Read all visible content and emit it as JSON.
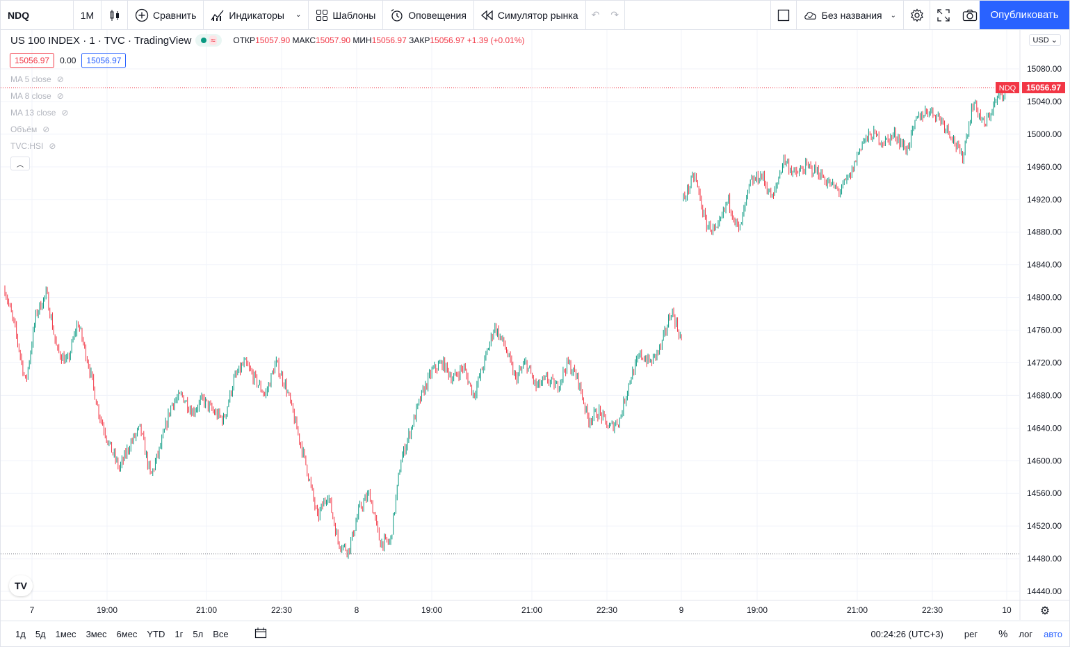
{
  "toolbar": {
    "symbol": "NDQ",
    "interval": "1М",
    "compare_label": "Сравнить",
    "indicators_label": "Индикаторы",
    "templates_label": "Шаблоны",
    "alerts_label": "Оповещения",
    "replay_label": "Симулятор рынка",
    "layout_name": "Без названия",
    "publish_label": "Опубликовать"
  },
  "legend": {
    "title": "US 100 INDEX · 1 · TVC · TradingView",
    "open_label": "ОТКР",
    "open": "15057.90",
    "high_label": "МАКС",
    "high": "15057.90",
    "low_label": "МИН",
    "low": "15056.97",
    "close_label": "ЗАКР",
    "close": "15056.97",
    "change": "+1.39 (+0.01%)",
    "sell_price": "15056.97",
    "spread": "0.00",
    "buy_price": "15056.97"
  },
  "indicators": [
    {
      "label": "MA 5 close"
    },
    {
      "label": "MA 8 close"
    },
    {
      "label": "MA 13 close"
    },
    {
      "label": "Объём"
    },
    {
      "label": "TVC:HSI"
    }
  ],
  "price_axis": {
    "currency": "USD",
    "ticks": [
      "15080.00",
      "15040.00",
      "15000.00",
      "14960.00",
      "14920.00",
      "14880.00",
      "14840.00",
      "14800.00",
      "14760.00",
      "14720.00",
      "14680.00",
      "14640.00",
      "14600.00",
      "14560.00",
      "14520.00",
      "14480.00",
      "14440.00"
    ],
    "last_label": "NDQ",
    "last_price": "15056.97"
  },
  "time_axis": {
    "ticks": [
      "7",
      "19:00",
      "21:00",
      "22:30",
      "8",
      "19:00",
      "21:00",
      "22:30",
      "9",
      "19:00",
      "21:00",
      "22:30",
      "10"
    ]
  },
  "bottombar": {
    "ranges": [
      "1д",
      "5д",
      "1мес",
      "3мес",
      "6мес",
      "YTD",
      "1г",
      "5л",
      "Все"
    ],
    "clock": "00:24:26 (UTC+3)",
    "session": "рег",
    "percent": "%",
    "log": "лог",
    "auto": "авто"
  },
  "colors": {
    "up": "#089981",
    "down": "#f23645",
    "accent": "#2962ff"
  },
  "chart_data": {
    "type": "candlestick",
    "symbol": "NDQ",
    "ylim": [
      14440,
      15090
    ],
    "last": 15056.97,
    "path_keypoints": [
      {
        "day": "7",
        "values": [
          14810,
          14760,
          14695,
          14780,
          14805,
          14735,
          14720,
          14770,
          14720,
          14660,
          14620,
          14590,
          14620,
          14640,
          14580,
          14620,
          14670,
          14680,
          14660,
          14675,
          14660,
          14650,
          14700,
          14720,
          14700,
          14680,
          14720,
          14690,
          14640,
          14590,
          14530,
          14560,
          14500,
          14490,
          14540,
          14560,
          14500
        ]
      },
      {
        "day": "8",
        "values": [
          14500,
          14600,
          14640,
          14680,
          14710,
          14720,
          14700,
          14715,
          14680,
          14720,
          14765,
          14740,
          14700,
          14720,
          14690,
          14700,
          14690,
          14720,
          14700,
          14650,
          14660,
          14640,
          14650,
          14700,
          14730,
          14720,
          14740,
          14785,
          14745
        ]
      },
      {
        "day": "9",
        "values": [
          14920,
          14950,
          14890,
          14880,
          14920,
          14880,
          14940,
          14950,
          14920,
          14970,
          14950,
          14960,
          14955,
          14940,
          14930,
          14950,
          14990,
          15000,
          14990,
          15000,
          14980,
          15020,
          15030,
          15020,
          15000,
          14970,
          15040,
          15010,
          15040,
          15057
        ]
      }
    ]
  }
}
